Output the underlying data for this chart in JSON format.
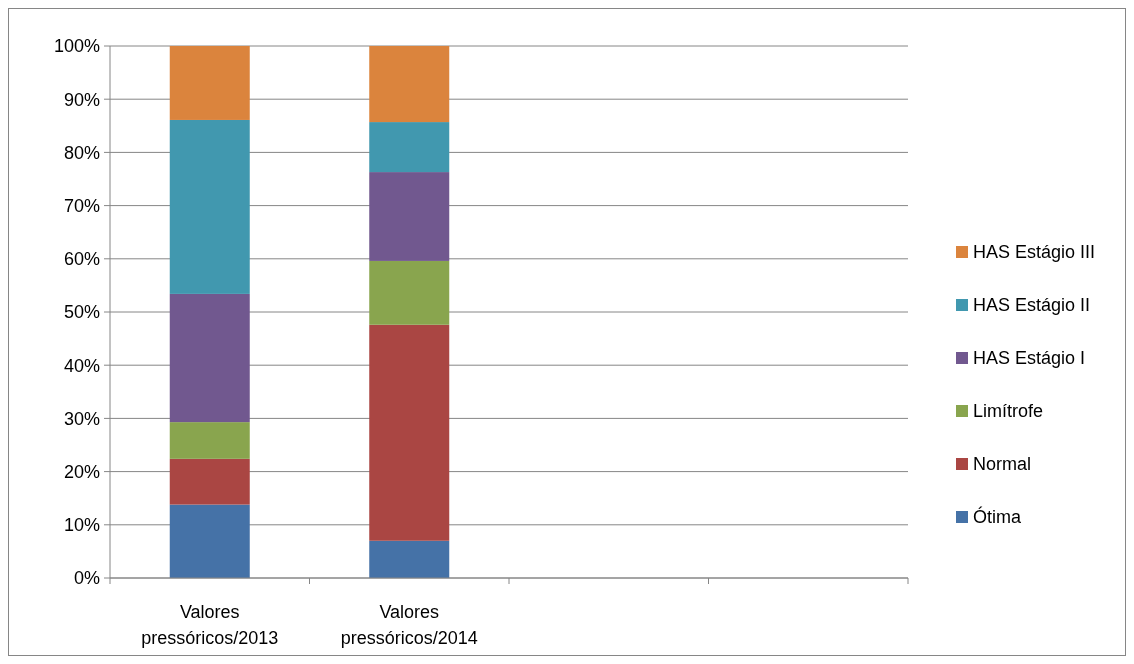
{
  "chart_data": {
    "type": "bar",
    "stacked": true,
    "categories": [
      "Valores pressóricos/2013",
      "Valores pressóricos/2014",
      null,
      null
    ],
    "series": [
      {
        "name": "Ótima",
        "color": "#4572a7",
        "values": [
          13.8,
          7.0,
          null,
          null
        ]
      },
      {
        "name": "Normal",
        "color": "#aa4643",
        "values": [
          8.6,
          40.6,
          null,
          null
        ]
      },
      {
        "name": "Limítrofe",
        "color": "#89a54e",
        "values": [
          6.9,
          12.0,
          null,
          null
        ]
      },
      {
        "name": "HAS Estágio I",
        "color": "#71588f",
        "values": [
          24.1,
          16.7,
          null,
          null
        ]
      },
      {
        "name": "HAS Estágio II",
        "color": "#4198af",
        "values": [
          32.7,
          9.4,
          null,
          null
        ]
      },
      {
        "name": "HAS Estágio III",
        "color": "#db843d",
        "values": [
          13.9,
          14.3,
          null,
          null
        ]
      }
    ],
    "ylim": [
      0,
      100
    ],
    "yticks": [
      {
        "value": 0,
        "label": "0%"
      },
      {
        "value": 10,
        "label": "10%"
      },
      {
        "value": 20,
        "label": "20%"
      },
      {
        "value": 30,
        "label": "30%"
      },
      {
        "value": 40,
        "label": "40%"
      },
      {
        "value": 50,
        "label": "50%"
      },
      {
        "value": 60,
        "label": "60%"
      },
      {
        "value": 70,
        "label": "70%"
      },
      {
        "value": 80,
        "label": "80%"
      },
      {
        "value": 90,
        "label": "90%"
      },
      {
        "value": 100,
        "label": "100%"
      }
    ],
    "grid": "y",
    "legend": "right"
  }
}
